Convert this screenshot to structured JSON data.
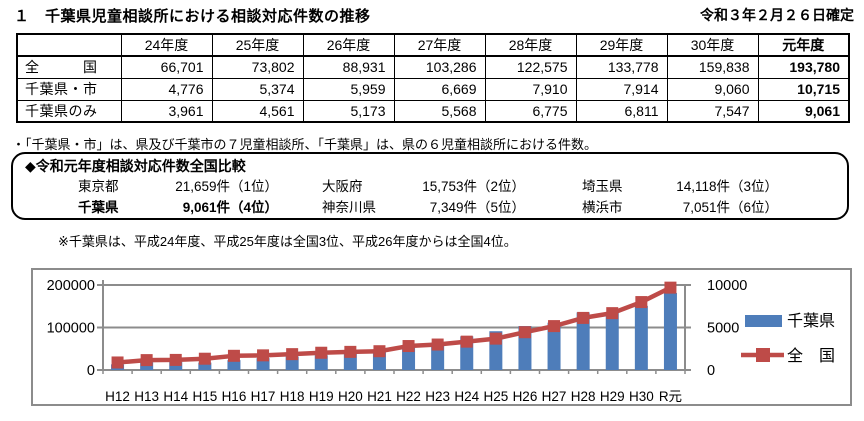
{
  "document": {
    "title": "１　千葉県児童相談所における相談対応件数の推移",
    "date_note": "令和３年２月２６日確定"
  },
  "table": {
    "headers": [
      "",
      "24年度",
      "25年度",
      "26年度",
      "27年度",
      "28年度",
      "29年度",
      "30年度",
      "元年度"
    ],
    "rows": [
      {
        "label": "全　　　国",
        "values": [
          "66,701",
          "73,802",
          "88,931",
          "103,286",
          "122,575",
          "133,778",
          "159,838",
          "193,780"
        ]
      },
      {
        "label": "千葉県・市",
        "values": [
          "4,776",
          "5,374",
          "5,959",
          "6,669",
          "7,910",
          "7,914",
          "9,060",
          "10,715"
        ]
      },
      {
        "label": "千葉県のみ",
        "values": [
          "3,961",
          "4,561",
          "5,173",
          "5,568",
          "6,775",
          "6,811",
          "7,547",
          "9,061"
        ]
      }
    ]
  },
  "note1": "・「千葉県・市」は、県及び千葉市の７児童相談所、「千葉県」は、県の６児童相談所における件数。",
  "comparison": {
    "heading": "◆令和元年度相談対応件数全国比較",
    "entries": [
      {
        "name": "東京都",
        "value": "21,659件（1位）"
      },
      {
        "name": "大阪府",
        "value": "15,753件（2位）"
      },
      {
        "name": "埼玉県",
        "value": "14,118件（3位）"
      },
      {
        "name": "千葉県",
        "value": "9,061件（4位）"
      },
      {
        "name": "神奈川県",
        "value": "7,349件（5位）"
      },
      {
        "name": "横浜市",
        "value": "7,051件（6位）"
      }
    ]
  },
  "note2": "※千葉県は、平成24年度、平成25年度は全国3位、平成26年度からは全国4位。",
  "chart_data": {
    "type": "bar",
    "subtype": "bar+line combo, dual axis",
    "categories": [
      "H12",
      "H13",
      "H14",
      "H15",
      "H16",
      "H17",
      "H18",
      "H19",
      "H20",
      "H21",
      "H22",
      "H23",
      "H24",
      "H25",
      "H26",
      "H27",
      "H28",
      "H29",
      "H30",
      "R元"
    ],
    "series": [
      {
        "name": "千葉県",
        "type": "bar",
        "axis": "right",
        "color": "#4E7DBA",
        "values": [
          666,
          911,
          960,
          873,
          1162,
          1392,
          1579,
          1733,
          1891,
          2103,
          2843,
          3219,
          3961,
          4561,
          5173,
          5568,
          6775,
          6811,
          7547,
          9061
        ]
      },
      {
        "name": "全　国",
        "type": "line",
        "axis": "left",
        "color": "#BE4B48",
        "marker": "square",
        "values": [
          17725,
          23274,
          23738,
          26569,
          33408,
          34472,
          37323,
          40639,
          42664,
          44211,
          56384,
          59919,
          66701,
          73802,
          88931,
          103286,
          122575,
          133778,
          159838,
          193780
        ]
      }
    ],
    "left_axis": {
      "ticks": [
        0,
        100000,
        200000
      ],
      "max": 200000
    },
    "right_axis": {
      "ticks": [
        0,
        5000,
        10000
      ],
      "max": 10000
    },
    "legend": [
      "千葉県",
      "全　国"
    ],
    "legend_position": "right",
    "grid": true,
    "axis_color": "#8C8C8C",
    "title": "",
    "xlabel": "",
    "ylabel": ""
  }
}
